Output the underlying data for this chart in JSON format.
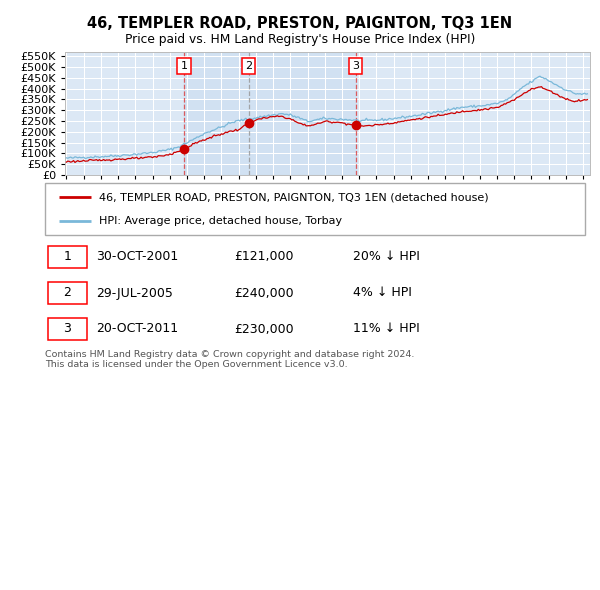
{
  "title": "46, TEMPLER ROAD, PRESTON, PAIGNTON, TQ3 1EN",
  "subtitle": "Price paid vs. HM Land Registry's House Price Index (HPI)",
  "legend_line1": "46, TEMPLER ROAD, PRESTON, PAIGNTON, TQ3 1EN (detached house)",
  "legend_line2": "HPI: Average price, detached house, Torbay",
  "footer1": "Contains HM Land Registry data © Crown copyright and database right 2024.",
  "footer2": "This data is licensed under the Open Government Licence v3.0.",
  "transactions": [
    {
      "num": "1",
      "date": "30-OCT-2001",
      "price": "£121,000",
      "hpi_rel": "20% ↓ HPI",
      "date_dec": 2001.83,
      "price_val": 121000
    },
    {
      "num": "2",
      "date": "29-JUL-2005",
      "price": "£240,000",
      "hpi_rel": "4% ↓ HPI",
      "date_dec": 2005.58,
      "price_val": 240000
    },
    {
      "num": "3",
      "date": "20-OCT-2011",
      "price": "£230,000",
      "hpi_rel": "11% ↓ HPI",
      "date_dec": 2011.8,
      "price_val": 230000
    }
  ],
  "hpi_color": "#7ab8d9",
  "price_color": "#cc0000",
  "plot_bg": "#dce8f5",
  "fig_bg": "#ffffff",
  "grid_color": "#ffffff",
  "vline1_color": "#dd4444",
  "vline2_color": "#888888",
  "shade_color": "#c5daf0",
  "ylim": [
    0,
    570000
  ],
  "yticks": [
    0,
    50000,
    100000,
    150000,
    200000,
    250000,
    300000,
    350000,
    400000,
    450000,
    500000,
    550000
  ],
  "xlim_start": 1994.92,
  "xlim_end": 2025.4,
  "hpi_anchors": [
    [
      1995.0,
      78000
    ],
    [
      1996.0,
      82000
    ],
    [
      1997.0,
      85000
    ],
    [
      1998.0,
      90000
    ],
    [
      1999.0,
      96000
    ],
    [
      2000.0,
      104000
    ],
    [
      2001.0,
      118000
    ],
    [
      2001.5,
      130000
    ],
    [
      2002.0,
      150000
    ],
    [
      2002.5,
      170000
    ],
    [
      2003.0,
      192000
    ],
    [
      2003.5,
      208000
    ],
    [
      2004.0,
      222000
    ],
    [
      2004.5,
      240000
    ],
    [
      2005.0,
      252000
    ],
    [
      2005.5,
      258000
    ],
    [
      2006.0,
      265000
    ],
    [
      2006.5,
      272000
    ],
    [
      2007.0,
      278000
    ],
    [
      2007.5,
      284000
    ],
    [
      2008.0,
      278000
    ],
    [
      2008.5,
      265000
    ],
    [
      2009.0,
      248000
    ],
    [
      2009.5,
      255000
    ],
    [
      2010.0,
      262000
    ],
    [
      2010.5,
      260000
    ],
    [
      2011.0,
      258000
    ],
    [
      2011.5,
      255000
    ],
    [
      2012.0,
      252000
    ],
    [
      2012.5,
      252000
    ],
    [
      2013.0,
      254000
    ],
    [
      2013.5,
      257000
    ],
    [
      2014.0,
      262000
    ],
    [
      2015.0,
      272000
    ],
    [
      2016.0,
      285000
    ],
    [
      2017.0,
      300000
    ],
    [
      2018.0,
      314000
    ],
    [
      2019.0,
      320000
    ],
    [
      2019.5,
      325000
    ],
    [
      2020.0,
      332000
    ],
    [
      2020.5,
      345000
    ],
    [
      2021.0,
      372000
    ],
    [
      2021.5,
      408000
    ],
    [
      2022.0,
      432000
    ],
    [
      2022.5,
      458000
    ],
    [
      2023.0,
      438000
    ],
    [
      2023.5,
      415000
    ],
    [
      2024.0,
      395000
    ],
    [
      2024.5,
      378000
    ],
    [
      2025.0,
      375000
    ]
  ],
  "price_anchors": [
    [
      1995.0,
      62000
    ],
    [
      1996.0,
      65000
    ],
    [
      1997.0,
      69000
    ],
    [
      1998.0,
      73000
    ],
    [
      1999.0,
      77000
    ],
    [
      2000.0,
      82000
    ],
    [
      2001.0,
      95000
    ],
    [
      2001.83,
      121000
    ],
    [
      2002.5,
      148000
    ],
    [
      2003.5,
      178000
    ],
    [
      2004.5,
      202000
    ],
    [
      2005.0,
      210000
    ],
    [
      2005.58,
      240000
    ],
    [
      2006.0,
      256000
    ],
    [
      2007.0,
      270000
    ],
    [
      2007.5,
      272000
    ],
    [
      2008.0,
      260000
    ],
    [
      2008.5,
      240000
    ],
    [
      2009.0,
      228000
    ],
    [
      2009.5,
      235000
    ],
    [
      2010.0,
      248000
    ],
    [
      2010.5,
      246000
    ],
    [
      2011.0,
      242000
    ],
    [
      2011.8,
      230000
    ],
    [
      2012.0,
      228000
    ],
    [
      2012.5,
      228000
    ],
    [
      2013.0,
      232000
    ],
    [
      2014.0,
      242000
    ],
    [
      2015.0,
      255000
    ],
    [
      2016.0,
      268000
    ],
    [
      2017.0,
      280000
    ],
    [
      2018.0,
      295000
    ],
    [
      2019.0,
      302000
    ],
    [
      2020.0,
      312000
    ],
    [
      2021.0,
      348000
    ],
    [
      2021.5,
      375000
    ],
    [
      2022.0,
      400000
    ],
    [
      2022.5,
      408000
    ],
    [
      2023.0,
      392000
    ],
    [
      2023.5,
      372000
    ],
    [
      2024.0,
      352000
    ],
    [
      2024.5,
      342000
    ],
    [
      2025.0,
      348000
    ]
  ]
}
